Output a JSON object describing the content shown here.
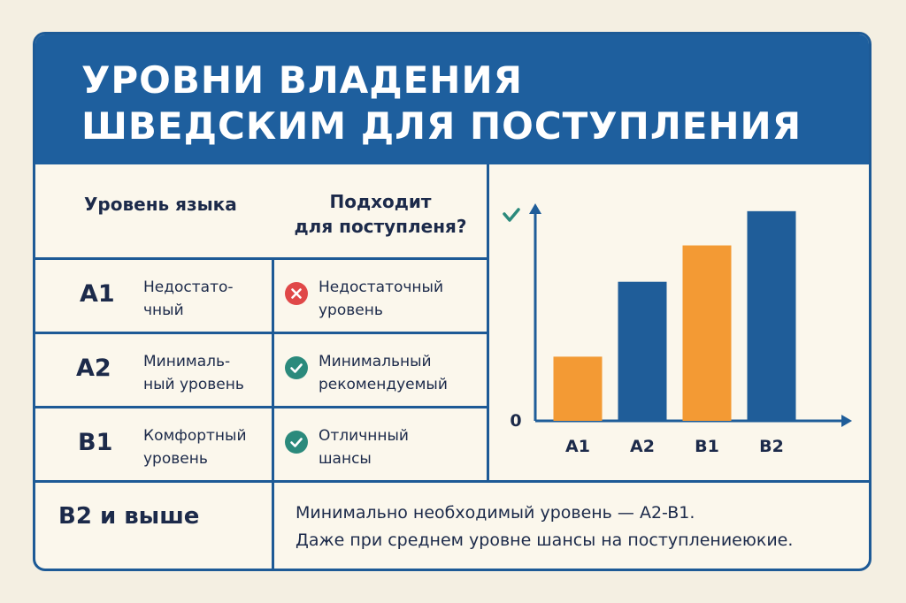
{
  "title": {
    "line1": "УРОВНИ ВЛАДЕНИЯ",
    "line2": "ШВЕДСКИМ ДЛЯ ПОСТУПЛЕНИЯ"
  },
  "table": {
    "col_level": "Уровень языка",
    "col_fit_line1": "Подходит",
    "col_fit_line2": "для поступленя?",
    "rows": [
      {
        "level": "A1",
        "desc1": "Недостато-",
        "desc2": "чный",
        "status": "no",
        "fit1": "Недостаточный",
        "fit2": "уровень"
      },
      {
        "level": "A2",
        "desc1": "Минималь-",
        "desc2": "ный уровень",
        "status": "yes",
        "fit1": "Минимальный",
        "fit2": "рекомендуемый"
      },
      {
        "level": "B1",
        "desc1": "Комфортный",
        "desc2": "уровень",
        "status": "yes",
        "fit1": "Отличнный",
        "fit2": "шансы"
      }
    ],
    "bottom_level": "B2 и выше",
    "note1": "Минимально необходимый уровень — A2-B1.",
    "note2": "Даже при среднем уровне шансы на поступлениеюкие."
  },
  "colors": {
    "header": "#1e5f9e",
    "blue": "#1f5d99",
    "orange": "#f39a34",
    "red": "#e04848",
    "teal": "#2b8a7c"
  },
  "chart_data": {
    "type": "bar",
    "categories": [
      "A1",
      "A2",
      "B1",
      "B2"
    ],
    "values": [
      30,
      65,
      82,
      98
    ],
    "bar_colors": [
      "orange",
      "blue",
      "orange",
      "blue"
    ],
    "ylim": [
      0,
      100
    ],
    "y_tick_label": "0",
    "title": "",
    "xlabel": "",
    "ylabel": "",
    "grid": false,
    "axis_icon": "check-icon"
  }
}
